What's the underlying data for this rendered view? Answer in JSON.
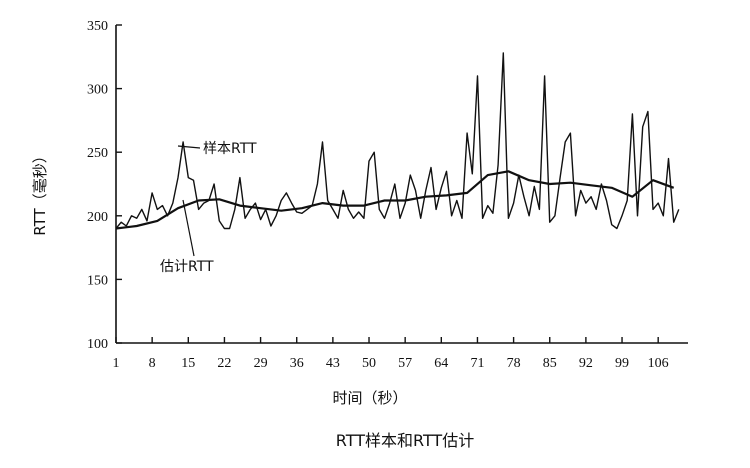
{
  "chart_data": {
    "type": "line",
    "title": "RTT样本和RTT估计",
    "xlabel": "时间（秒）",
    "ylabel": "RTT（毫秒）",
    "xlim": [
      1,
      111
    ],
    "ylim": [
      100,
      350
    ],
    "x_ticks": [
      "1",
      "8",
      "15",
      "22",
      "29",
      "36",
      "43",
      "50",
      "57",
      "64",
      "71",
      "78",
      "85",
      "92",
      "99",
      "106"
    ],
    "y_ticks": [
      "100",
      "150",
      "200",
      "250",
      "300",
      "350"
    ],
    "grid": false,
    "annotations": [
      {
        "text": "样本RTT",
        "series": "样本RTT"
      },
      {
        "text": "估计RTT",
        "series": "估计RTT"
      }
    ],
    "series": [
      {
        "name": "样本RTT",
        "x": [
          1,
          2,
          3,
          4,
          5,
          6,
          7,
          8,
          9,
          10,
          11,
          12,
          13,
          14,
          15,
          16,
          17,
          18,
          19,
          20,
          21,
          22,
          23,
          24,
          25,
          26,
          27,
          28,
          29,
          30,
          31,
          32,
          33,
          34,
          35,
          36,
          37,
          38,
          39,
          40,
          41,
          42,
          43,
          44,
          45,
          46,
          47,
          48,
          49,
          50,
          51,
          52,
          53,
          54,
          55,
          56,
          57,
          58,
          59,
          60,
          61,
          62,
          63,
          64,
          65,
          66,
          67,
          68,
          69,
          70,
          71,
          72,
          73,
          74,
          75,
          76,
          77,
          78,
          79,
          80,
          81,
          82,
          83,
          84,
          85,
          86,
          87,
          88,
          89,
          90,
          91,
          92,
          93,
          94,
          95,
          96,
          97,
          98,
          99,
          100,
          101,
          102,
          103,
          104,
          105,
          106,
          107,
          108,
          109,
          110
        ],
        "y": [
          190,
          195,
          192,
          200,
          198,
          205,
          196,
          218,
          205,
          208,
          200,
          210,
          230,
          258,
          230,
          228,
          205,
          210,
          212,
          225,
          196,
          190,
          190,
          205,
          230,
          198,
          205,
          210,
          197,
          205,
          192,
          200,
          212,
          218,
          210,
          203,
          202,
          205,
          208,
          225,
          258,
          212,
          205,
          198,
          220,
          205,
          198,
          203,
          198,
          243,
          250,
          205,
          198,
          210,
          225,
          198,
          210,
          232,
          220,
          198,
          220,
          238,
          205,
          222,
          235,
          200,
          212,
          198,
          265,
          233,
          310,
          198,
          208,
          202,
          240,
          328,
          198,
          210,
          232,
          215,
          200,
          223,
          205,
          310,
          195,
          200,
          230,
          258,
          265,
          200,
          220,
          210,
          215,
          205,
          225,
          212,
          193,
          190,
          200,
          212,
          280,
          200,
          270,
          282,
          205,
          210,
          200,
          245,
          195,
          205
        ]
      },
      {
        "name": "估计RTT",
        "x": [
          1,
          5,
          9,
          13,
          17,
          21,
          25,
          29,
          33,
          37,
          41,
          45,
          49,
          53,
          57,
          61,
          65,
          69,
          73,
          77,
          81,
          85,
          89,
          93,
          97,
          101,
          105,
          109
        ],
        "y": [
          190,
          192,
          196,
          206,
          212,
          213,
          208,
          206,
          204,
          206,
          210,
          208,
          208,
          212,
          212,
          215,
          216,
          218,
          232,
          235,
          228,
          225,
          226,
          224,
          222,
          215,
          228,
          222
        ]
      }
    ]
  }
}
